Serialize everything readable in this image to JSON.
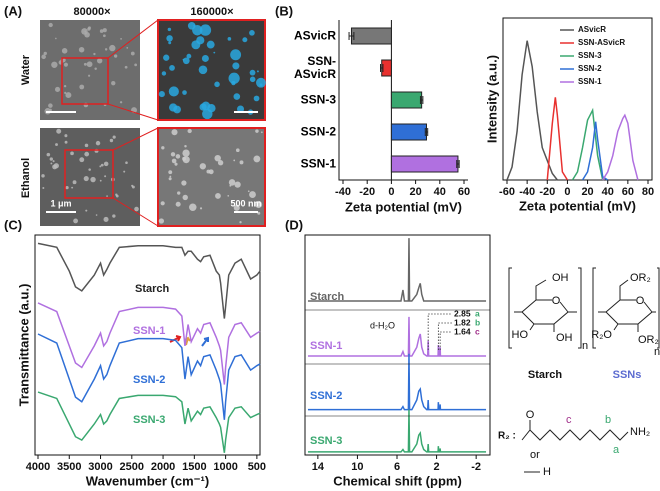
{
  "panel_labels": [
    "(A)",
    "(B)",
    "(C)",
    "(D)"
  ],
  "micrographs": {
    "columns": [
      "80000×",
      "160000×"
    ],
    "rows": [
      "Water",
      "Ethanol"
    ],
    "scale_bars": [
      "1 μm",
      "500 nm"
    ]
  },
  "chart_data": [
    {
      "type": "bar",
      "orientation": "horizontal",
      "categories": [
        "ASvicR",
        "SSN-ASvicR",
        "SSN-3",
        "SSN-2",
        "SSN-1"
      ],
      "values": [
        -33,
        -8,
        25,
        29,
        55
      ],
      "errors": [
        2,
        1,
        1,
        1,
        1
      ],
      "colors": [
        "#777777",
        "#e8312f",
        "#3aa870",
        "#2f6fd6",
        "#b070e0"
      ],
      "xlabel": "Zeta potential (mV)",
      "xlim": [
        -40,
        60
      ],
      "xticks": [
        -40,
        -20,
        0,
        20,
        40,
        60
      ]
    },
    {
      "type": "line",
      "xlabel": "Zeta potential (mV)",
      "ylabel": "Intensity (a.u.)",
      "xlim": [
        -60,
        80
      ],
      "xticks": [
        -60,
        -40,
        -20,
        0,
        20,
        40,
        60,
        80
      ],
      "ylim": [
        0,
        1
      ],
      "legend": "upper right",
      "series": [
        {
          "name": "ASvicR",
          "color": "#555555",
          "x": [
            -60,
            -55,
            -50,
            -45,
            -40,
            -35,
            -30,
            -25,
            -20,
            -15,
            -10
          ],
          "values": [
            0,
            0.08,
            0.3,
            0.65,
            0.86,
            0.7,
            0.42,
            0.2,
            0.12,
            0.04,
            0
          ]
        },
        {
          "name": "SSN-ASvicR",
          "color": "#e8312f",
          "x": [
            -20,
            -15,
            -12,
            -10,
            -5,
            0
          ],
          "values": [
            0,
            0.35,
            0.51,
            0.4,
            0.05,
            0
          ]
        },
        {
          "name": "SSN-3",
          "color": "#3aa870",
          "x": [
            5,
            10,
            15,
            20,
            25,
            30,
            35
          ],
          "values": [
            0,
            0.05,
            0.2,
            0.37,
            0.43,
            0.15,
            0
          ]
        },
        {
          "name": "SSN-2",
          "color": "#2f6fd6",
          "x": [
            15,
            20,
            25,
            28,
            30,
            35,
            40
          ],
          "values": [
            0,
            0.05,
            0.2,
            0.36,
            0.25,
            0.02,
            0
          ]
        },
        {
          "name": "SSN-1",
          "color": "#b070e0",
          "x": [
            35,
            40,
            45,
            50,
            55,
            57,
            60,
            65,
            70
          ],
          "values": [
            0,
            0.05,
            0.15,
            0.3,
            0.38,
            0.4,
            0.35,
            0.12,
            0
          ]
        }
      ]
    },
    {
      "type": "line",
      "xlabel": "Wavenumber (cm⁻¹)",
      "ylabel": "Transmittance (a.u.)",
      "xlim": [
        4000,
        450
      ],
      "xticks": [
        4000,
        3500,
        3000,
        2500,
        2000,
        1500,
        1000,
        500
      ],
      "ylim": [
        0,
        10
      ],
      "x": [
        4000,
        3700,
        3500,
        3400,
        3300,
        3100,
        3000,
        2950,
        2900,
        2850,
        2700,
        2400,
        2100,
        2000,
        1800,
        1700,
        1650,
        1600,
        1550,
        1450,
        1400,
        1350,
        1250,
        1150,
        1100,
        1080,
        1020,
        1000,
        950,
        850,
        750,
        600,
        500,
        450
      ],
      "series": [
        {
          "name": "Starch",
          "color": "#555555",
          "values": [
            9.62,
            9.44,
            8.36,
            7.64,
            7.46,
            8.18,
            8.72,
            8.18,
            8.43,
            8.72,
            9.44,
            9.51,
            9.51,
            9.51,
            9.44,
            9.44,
            9.08,
            9.26,
            9.26,
            8.9,
            8.79,
            9.01,
            9.08,
            8.36,
            8.18,
            7.82,
            6.2,
            6.74,
            8.18,
            8.72,
            8.9,
            8.0,
            8.18,
            8.36
          ]
        },
        {
          "name": "SSN-1",
          "color": "#b070e0",
          "values": [
            6.91,
            6.52,
            4.96,
            4.18,
            3.98,
            4.96,
            5.54,
            4.96,
            5.15,
            5.54,
            6.52,
            6.71,
            6.71,
            6.71,
            6.63,
            6.32,
            4.96,
            5.93,
            5.15,
            5.74,
            5.54,
            5.93,
            6.01,
            5.35,
            4.96,
            4.76,
            3.2,
            3.98,
            5.35,
            5.93,
            6.01,
            5.35,
            5.54,
            5.62
          ]
        },
        {
          "name": "SSN-2",
          "color": "#2f6fd6",
          "values": [
            5.5,
            5.09,
            3.45,
            2.63,
            2.42,
            3.45,
            4.06,
            3.45,
            3.65,
            4.06,
            5.09,
            5.29,
            5.29,
            5.29,
            5.21,
            4.88,
            3.45,
            4.47,
            3.65,
            4.27,
            4.06,
            4.47,
            4.55,
            3.86,
            3.45,
            3.24,
            1.6,
            2.42,
            3.86,
            4.47,
            4.55,
            3.86,
            4.06,
            4.14
          ]
        },
        {
          "name": "SSN-3",
          "color": "#3aa870",
          "values": [
            2.86,
            2.57,
            1.41,
            0.83,
            0.68,
            1.41,
            1.84,
            1.41,
            1.55,
            1.84,
            2.57,
            2.71,
            2.71,
            2.71,
            2.65,
            2.42,
            1.41,
            2.13,
            1.55,
            1.99,
            1.84,
            2.13,
            2.19,
            1.7,
            1.41,
            1.26,
            0.1,
            0.68,
            1.7,
            2.13,
            2.19,
            1.7,
            1.84,
            1.9
          ]
        }
      ]
    },
    {
      "type": "line",
      "xlabel": "Chemical shift (ppm)",
      "xlim": [
        15.3,
        -3.4
      ],
      "xticks": [
        14,
        10,
        6,
        2,
        -2
      ],
      "ylim": [
        0,
        10
      ],
      "x": [
        15,
        5.6,
        5.4,
        5.25,
        5.0,
        4.85,
        4.79,
        4.73,
        4.5,
        4.0,
        3.8,
        3.65,
        3.5,
        3.3,
        3.0,
        2.9,
        2.85,
        2.8,
        2.0,
        1.85,
        1.82,
        1.79,
        1.67,
        1.64,
        1.61,
        1.0,
        -3
      ],
      "series": [
        {
          "name": "Starch",
          "color": "#666666",
          "values": [
            7,
            7,
            7.5,
            7,
            7,
            7,
            9.86,
            7,
            7,
            7.3,
            7.6,
            7.8,
            7.3,
            7,
            7,
            7,
            7,
            7,
            7,
            7,
            7,
            7,
            7,
            7,
            7,
            7,
            7
          ]
        },
        {
          "name": "SSN-1",
          "color": "#b070e0",
          "values": [
            4.5,
            4.5,
            4.7,
            4.5,
            4.5,
            4.5,
            6.28,
            4.5,
            4.5,
            4.9,
            5.3,
            5.5,
            4.9,
            4.6,
            4.5,
            4.5,
            5.2,
            4.5,
            4.5,
            4.5,
            5.0,
            4.5,
            4.5,
            4.9,
            4.5,
            4.5,
            4.5
          ]
        },
        {
          "name": "SSN-2",
          "color": "#2f6fd6",
          "values": [
            2.06,
            2.06,
            2.2,
            2.06,
            2.06,
            2.06,
            4.6,
            2.06,
            2.06,
            2.5,
            2.9,
            3.0,
            2.5,
            2.2,
            2.06,
            2.06,
            2.5,
            2.06,
            2.06,
            2.06,
            2.4,
            2.06,
            2.06,
            2.3,
            2.06,
            2.06,
            2.06
          ]
        },
        {
          "name": "SSN-3",
          "color": "#3aa870",
          "values": [
            0.14,
            0.14,
            0.25,
            0.14,
            0.14,
            0.14,
            2.06,
            0.14,
            0.14,
            0.5,
            0.9,
            1.0,
            0.5,
            0.25,
            0.14,
            0.14,
            0.5,
            0.14,
            0.14,
            0.14,
            0.4,
            0.14,
            0.14,
            0.3,
            0.14,
            0.14,
            0.14
          ]
        }
      ],
      "solvent_label": "d-H₂O",
      "annotations": [
        {
          "shift": 2.85,
          "label": "a"
        },
        {
          "shift": 1.82,
          "label": "b"
        },
        {
          "shift": 1.64,
          "label": "c"
        }
      ]
    }
  ],
  "structures": {
    "starch": {
      "name": "Starch",
      "atoms": [
        "OH",
        "O",
        "HO",
        "OH",
        "n"
      ]
    },
    "ssn": {
      "name": "SSNs",
      "atoms": [
        "OR₂",
        "O",
        "R₂O",
        "OR₂",
        "n"
      ]
    },
    "r2": {
      "label": "R₂ :",
      "carbonyl": "O",
      "amine": "NH₂",
      "or": "or",
      "h": "H",
      "letters": [
        "a",
        "b",
        "c"
      ]
    }
  }
}
